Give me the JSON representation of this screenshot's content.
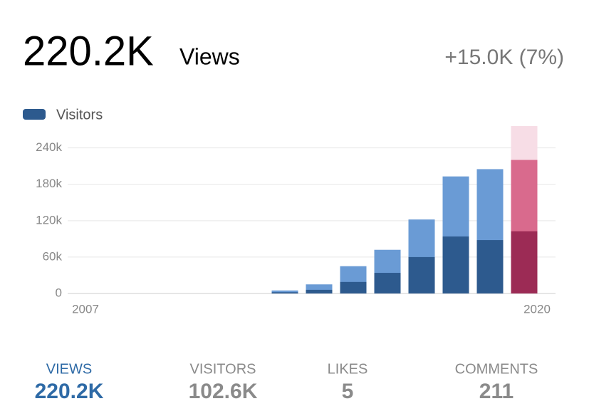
{
  "header": {
    "value": "220.2K",
    "label": "Views",
    "change": "+15.0K (7%)"
  },
  "chart_data": {
    "type": "bar",
    "categories": [
      "2007",
      null,
      null,
      null,
      null,
      null,
      null,
      null,
      null,
      null,
      null,
      null,
      null,
      "2020"
    ],
    "series": [
      {
        "color": "#6a9bd5",
        "highlight_color": "#d96a8d",
        "values": [
          0,
          0,
          0,
          0,
          0,
          0,
          5000,
          15000,
          45000,
          72000,
          122000,
          193000,
          205000,
          220200
        ]
      },
      {
        "name": "Visitors",
        "color": "#2d5a8e",
        "highlight_color": "#9c2b55",
        "values": [
          0,
          0,
          0,
          0,
          0,
          0,
          2000,
          6000,
          19000,
          34000,
          60000,
          94000,
          88000,
          102600
        ]
      }
    ],
    "highlight_index": 13,
    "highlight_background": "#f7dde6",
    "ylim": [
      0,
      276000
    ],
    "yticks": [
      0,
      {
        "value": 60000,
        "label": "60k"
      },
      {
        "value": 120000,
        "label": "120k"
      },
      {
        "value": 180000,
        "label": "180k"
      },
      {
        "value": 240000,
        "label": "240k"
      }
    ],
    "grid": true
  },
  "tabs": [
    {
      "label": "VIEWS",
      "value": "220.2K",
      "selected": true
    },
    {
      "label": "VISITORS",
      "value": "102.6K",
      "selected": false
    },
    {
      "label": "LIKES",
      "value": "5",
      "selected": false
    },
    {
      "label": "COMMENTS",
      "value": "211",
      "selected": false
    }
  ]
}
